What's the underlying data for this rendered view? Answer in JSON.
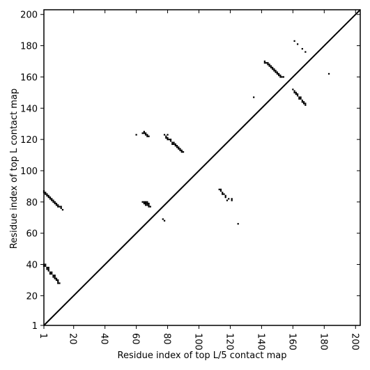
{
  "chart_data": {
    "type": "contact-map",
    "x_label": "Residue index of top L/5 contact map",
    "y_label": "Residue index of top L contact map",
    "xlim": [
      1,
      203
    ],
    "ylim": [
      1,
      203
    ],
    "xticks": [
      1,
      20,
      40,
      60,
      80,
      100,
      120,
      140,
      160,
      180,
      200
    ],
    "yticks": [
      1,
      20,
      40,
      60,
      80,
      100,
      120,
      140,
      160,
      180,
      200
    ],
    "color": "#000000",
    "x": [
      1,
      1,
      2,
      2,
      3,
      3,
      4,
      4,
      5,
      5,
      6,
      6,
      7,
      7,
      8,
      8,
      9,
      9,
      10,
      10,
      11,
      12,
      12,
      13,
      1,
      1,
      2,
      2,
      3,
      3,
      4,
      4,
      4,
      5,
      5,
      6,
      6,
      7,
      7,
      8,
      8,
      8,
      9,
      9,
      10,
      10,
      10,
      11,
      64,
      65,
      66,
      67,
      65,
      66,
      67,
      68,
      66,
      67,
      68,
      68,
      69,
      60,
      64,
      65,
      65,
      66,
      66,
      67,
      67,
      68,
      78,
      79,
      80,
      79,
      80,
      80,
      81,
      82,
      82,
      83,
      83,
      84,
      84,
      85,
      85,
      86,
      86,
      87,
      87,
      88,
      88,
      89,
      89,
      90,
      113,
      114,
      114,
      115,
      115,
      116,
      117,
      117,
      118,
      119,
      121,
      121,
      77,
      78,
      125,
      135,
      183,
      161,
      163,
      166,
      168,
      142,
      142,
      143,
      144,
      144,
      145,
      145,
      146,
      146,
      147,
      147,
      148,
      148,
      149,
      149,
      150,
      150,
      151,
      151,
      152,
      152,
      153,
      154,
      160,
      161,
      161,
      162,
      162,
      163,
      163,
      164,
      164,
      165,
      165,
      166,
      166,
      167,
      167,
      168,
      168
    ],
    "values": [
      87,
      86,
      86,
      85,
      85,
      84,
      84,
      83,
      83,
      82,
      82,
      81,
      81,
      80,
      80,
      79,
      79,
      78,
      78,
      77,
      77,
      77,
      76,
      75,
      40,
      39,
      40,
      39,
      38,
      37,
      38,
      37,
      36,
      35,
      34,
      35,
      34,
      33,
      32,
      33,
      32,
      31,
      31,
      30,
      30,
      29,
      28,
      28,
      80,
      80,
      80,
      80,
      79,
      79,
      79,
      79,
      78,
      78,
      78,
      77,
      77,
      123,
      124,
      125,
      124,
      124,
      123,
      123,
      122,
      122,
      123,
      122,
      123,
      121,
      121,
      120,
      120,
      120,
      119,
      118,
      117,
      118,
      117,
      117,
      116,
      116,
      115,
      115,
      114,
      114,
      113,
      113,
      112,
      112,
      88,
      88,
      87,
      86,
      85,
      85,
      84,
      83,
      81,
      82,
      82,
      81,
      69,
      68,
      66,
      147,
      162,
      183,
      181,
      178,
      176,
      170,
      169,
      169,
      169,
      168,
      168,
      167,
      167,
      166,
      166,
      165,
      165,
      164,
      164,
      163,
      163,
      162,
      162,
      161,
      161,
      160,
      160,
      160,
      152,
      151,
      150,
      150,
      149,
      149,
      148,
      147,
      146,
      147,
      146,
      145,
      144,
      144,
      143,
      143,
      142
    ]
  }
}
